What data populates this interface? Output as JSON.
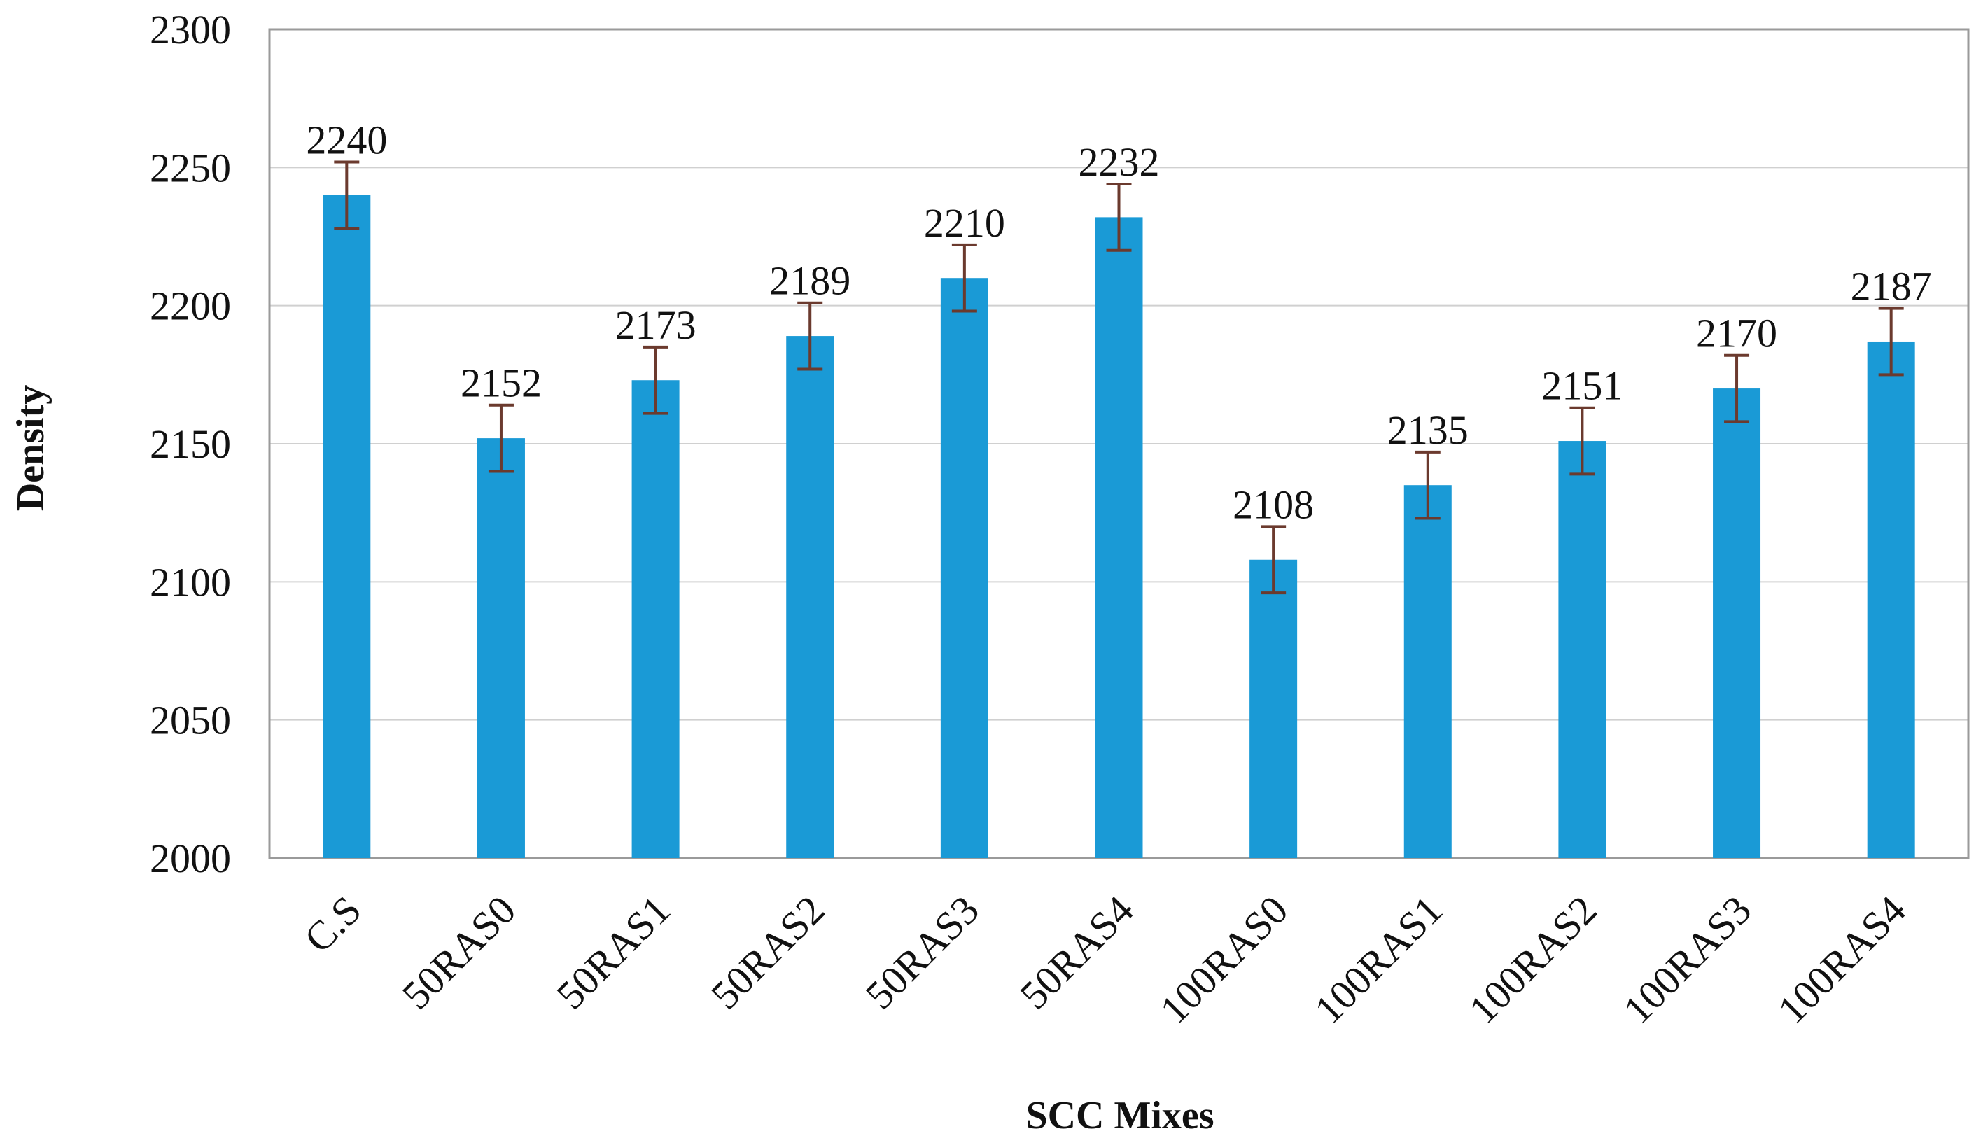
{
  "chart_data": {
    "type": "bar",
    "title": "",
    "xlabel": "SCC Mixes",
    "ylabel": "Density",
    "categories": [
      "C.S",
      "50RAS0",
      "50RAS1",
      "50RAS2",
      "50RAS3",
      "50RAS4",
      "100RAS0",
      "100RAS1",
      "100RAS2",
      "100RAS3",
      "100RAS4"
    ],
    "values": [
      2240,
      2152,
      2173,
      2189,
      2210,
      2232,
      2108,
      2135,
      2151,
      2170,
      2187
    ],
    "labels": [
      "2240",
      "2152",
      "2173",
      "2189",
      "2210",
      "2232",
      "2108",
      "2135",
      "2151",
      "2170",
      "2187"
    ],
    "error": 12,
    "ylim": [
      2000,
      2300
    ],
    "yticks": [
      "2000",
      "2050",
      "2100",
      "2150",
      "2200",
      "2250",
      "2300"
    ],
    "grid": true,
    "legend": "none",
    "colors": {
      "bar": "#1a9ad6",
      "error": "#6b3a2e",
      "grid": "#d0d0d0",
      "axis": "#9a9a9a"
    }
  }
}
